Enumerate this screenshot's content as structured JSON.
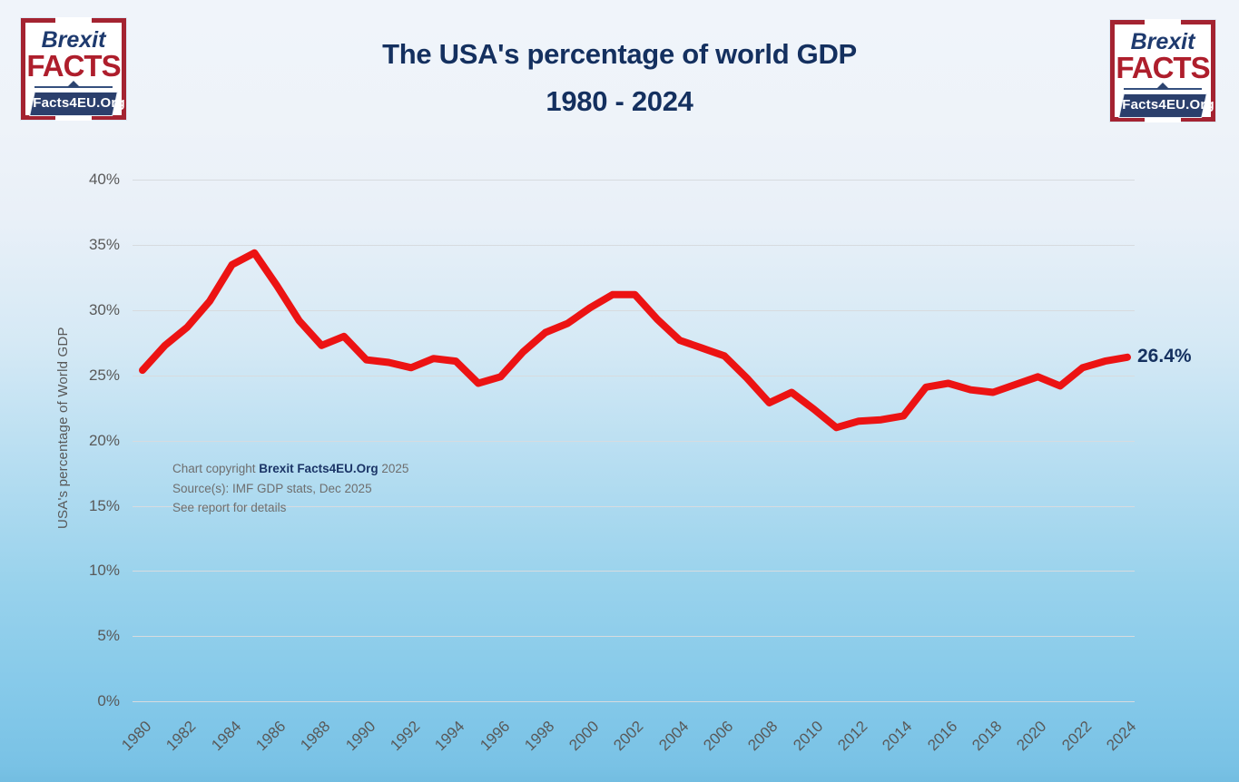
{
  "page": {
    "title_line1": "The USA's percentage of world GDP",
    "title_line2": "1980 - 2024"
  },
  "logo": {
    "brexit": "Brexit",
    "facts": "FACTS",
    "banner": "Facts4EU.Org"
  },
  "chart_data": {
    "type": "line",
    "title": "The USA's percentage of world GDP 1980 - 2024",
    "ylabel": "USA's percentage of World GDP",
    "xlabel": "",
    "ylim": [
      0,
      40
    ],
    "ytick_step": 5,
    "ytick_labels": [
      "0%",
      "5%",
      "10%",
      "15%",
      "20%",
      "25%",
      "30%",
      "35%",
      "40%"
    ],
    "xtick_labels": [
      "1980",
      "1982",
      "1984",
      "1986",
      "1988",
      "1990",
      "1992",
      "1994",
      "1996",
      "1998",
      "2000",
      "2002",
      "2004",
      "2006",
      "2008",
      "2010",
      "2012",
      "2014",
      "2016",
      "2018",
      "2020",
      "2022",
      "2024"
    ],
    "grid": true,
    "legend_position": "none",
    "x": [
      1980,
      1981,
      1982,
      1983,
      1984,
      1985,
      1986,
      1987,
      1988,
      1989,
      1990,
      1991,
      1992,
      1993,
      1994,
      1995,
      1996,
      1997,
      1998,
      1999,
      2000,
      2001,
      2002,
      2003,
      2004,
      2005,
      2006,
      2007,
      2008,
      2009,
      2010,
      2011,
      2012,
      2013,
      2014,
      2015,
      2016,
      2017,
      2018,
      2019,
      2020,
      2021,
      2022,
      2023,
      2024
    ],
    "series": [
      {
        "name": "USA's percentage of World GDP",
        "color": "#ec1313",
        "values": [
          25.4,
          27.3,
          28.7,
          30.7,
          33.5,
          34.4,
          31.9,
          29.2,
          27.3,
          28.0,
          26.2,
          26.0,
          25.6,
          26.3,
          26.1,
          24.4,
          24.9,
          26.8,
          28.3,
          29.0,
          30.2,
          31.2,
          31.2,
          29.3,
          27.7,
          27.1,
          26.5,
          24.8,
          22.9,
          23.7,
          22.4,
          21.0,
          21.5,
          21.6,
          21.9,
          24.1,
          24.4,
          23.9,
          23.7,
          24.3,
          24.9,
          24.2,
          25.6,
          26.1,
          26.4
        ]
      }
    ],
    "end_label": "26.4%",
    "annotation": {
      "copyright_prefix": "Chart copyright ",
      "copyright_org": "Brexit Facts4EU.Org",
      "copyright_year": " 2025",
      "source": "Source(s): IMF GDP stats, Dec 2025",
      "note": "See report for details"
    }
  },
  "colors": {
    "line_red": "#ec1313",
    "title_navy": "#14305f",
    "logo_red": "#a42331",
    "logo_navy": "#1e3a6e",
    "banner_navy": "#2b3f6c",
    "axis_text_gray": "#595959",
    "annotation_gray": "#6e6e6e",
    "background_top": "#f0f4fa",
    "background_bottom": "#79c2e5"
  }
}
